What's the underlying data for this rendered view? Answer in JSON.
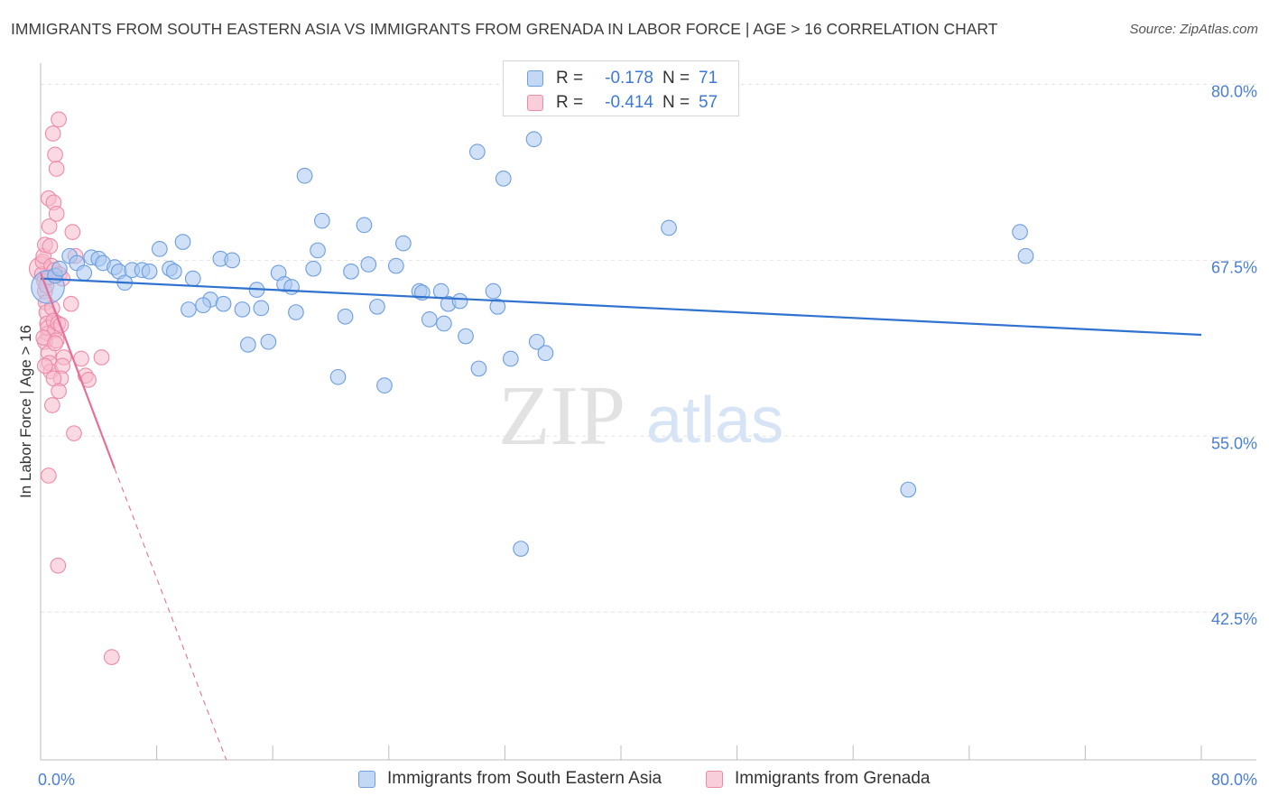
{
  "title": "IMMIGRANTS FROM SOUTH EASTERN ASIA VS IMMIGRANTS FROM GRENADA IN LABOR FORCE | AGE > 16 CORRELATION CHART",
  "source": "Source: ZipAtlas.com",
  "watermark": {
    "zip": "ZIP",
    "atlas": "atlas"
  },
  "legend": {
    "r_label": "R =",
    "n_label": "N =",
    "rows": [
      {
        "r": "-0.178",
        "n": "71"
      },
      {
        "r": "-0.414",
        "n": "57"
      }
    ]
  },
  "bottom_legend": [
    "Immigrants from South Eastern Asia",
    "Immigrants from Grenada"
  ],
  "chart_data": {
    "type": "scatter",
    "title": "IMMIGRANTS FROM SOUTH EASTERN ASIA VS IMMIGRANTS FROM GRENADA IN LABOR FORCE | AGE > 16 CORRELATION CHART",
    "xlabel": "",
    "ylabel": "In Labor Force | Age > 16",
    "xlim": [
      0,
      80
    ],
    "ylim": [
      32,
      81.5
    ],
    "x_tick_labels": [
      "0.0%",
      "80.0%"
    ],
    "y_ticks": [
      42.5,
      55.0,
      67.5,
      80.0
    ],
    "y_tick_labels": [
      "42.5%",
      "55.0%",
      "67.5%",
      "80.0%"
    ],
    "grid": true,
    "colors": {
      "blue_fill": "#aac8f0",
      "blue_stroke": "#6d9ee0",
      "blue_line": "#2f72d0",
      "pink_fill": "#f7b9cc",
      "pink_stroke": "#ec8aa8",
      "pink_line": "#e5709a"
    },
    "series": [
      {
        "name": "Immigrants from South Eastern Asia",
        "color": "#aac8f0",
        "trend": {
          "x0": 0.0,
          "y0": 66.2,
          "x1": 80.0,
          "y1": 62.2
        },
        "points": [
          {
            "x": 0.5,
            "y": 65.6,
            "s": 2.2
          },
          {
            "x": 1.0,
            "y": 66.4
          },
          {
            "x": 1.3,
            "y": 66.9
          },
          {
            "x": 2.0,
            "y": 67.8
          },
          {
            "x": 2.5,
            "y": 67.3
          },
          {
            "x": 3.0,
            "y": 66.6
          },
          {
            "x": 3.5,
            "y": 67.7
          },
          {
            "x": 4.0,
            "y": 67.6
          },
          {
            "x": 4.3,
            "y": 67.3
          },
          {
            "x": 5.1,
            "y": 67.0
          },
          {
            "x": 5.4,
            "y": 66.7
          },
          {
            "x": 5.8,
            "y": 65.9
          },
          {
            "x": 6.3,
            "y": 66.8
          },
          {
            "x": 7.0,
            "y": 66.8
          },
          {
            "x": 8.2,
            "y": 68.3
          },
          {
            "x": 8.9,
            "y": 66.9
          },
          {
            "x": 9.8,
            "y": 68.8
          },
          {
            "x": 7.5,
            "y": 66.7
          },
          {
            "x": 9.2,
            "y": 66.7
          },
          {
            "x": 10.5,
            "y": 66.2
          },
          {
            "x": 10.2,
            "y": 64.0
          },
          {
            "x": 11.7,
            "y": 64.7
          },
          {
            "x": 11.2,
            "y": 64.3
          },
          {
            "x": 12.6,
            "y": 64.4
          },
          {
            "x": 12.4,
            "y": 67.6
          },
          {
            "x": 13.2,
            "y": 67.5
          },
          {
            "x": 13.9,
            "y": 64.0
          },
          {
            "x": 14.3,
            "y": 61.5
          },
          {
            "x": 14.9,
            "y": 65.4
          },
          {
            "x": 15.2,
            "y": 64.1
          },
          {
            "x": 15.7,
            "y": 61.7
          },
          {
            "x": 16.4,
            "y": 66.6
          },
          {
            "x": 16.8,
            "y": 65.8
          },
          {
            "x": 17.3,
            "y": 65.6
          },
          {
            "x": 17.6,
            "y": 63.8
          },
          {
            "x": 18.2,
            "y": 73.5
          },
          {
            "x": 18.8,
            "y": 66.9
          },
          {
            "x": 19.1,
            "y": 68.2
          },
          {
            "x": 19.4,
            "y": 70.3
          },
          {
            "x": 20.5,
            "y": 59.2
          },
          {
            "x": 21.0,
            "y": 63.5
          },
          {
            "x": 21.4,
            "y": 66.7
          },
          {
            "x": 22.3,
            "y": 70.0
          },
          {
            "x": 22.6,
            "y": 67.2
          },
          {
            "x": 23.2,
            "y": 64.2
          },
          {
            "x": 23.7,
            "y": 58.6
          },
          {
            "x": 24.5,
            "y": 67.1
          },
          {
            "x": 25.0,
            "y": 68.7
          },
          {
            "x": 26.1,
            "y": 65.3
          },
          {
            "x": 26.3,
            "y": 65.2
          },
          {
            "x": 26.8,
            "y": 63.3
          },
          {
            "x": 27.6,
            "y": 65.3
          },
          {
            "x": 27.8,
            "y": 63.0
          },
          {
            "x": 28.1,
            "y": 64.4
          },
          {
            "x": 28.9,
            "y": 64.6
          },
          {
            "x": 30.1,
            "y": 75.2
          },
          {
            "x": 29.3,
            "y": 62.1
          },
          {
            "x": 30.2,
            "y": 59.8
          },
          {
            "x": 31.2,
            "y": 65.3
          },
          {
            "x": 31.5,
            "y": 64.2
          },
          {
            "x": 31.9,
            "y": 73.3
          },
          {
            "x": 32.4,
            "y": 60.5
          },
          {
            "x": 33.1,
            "y": 47.0
          },
          {
            "x": 34.0,
            "y": 76.1
          },
          {
            "x": 34.2,
            "y": 61.7
          },
          {
            "x": 34.8,
            "y": 60.9
          },
          {
            "x": 43.3,
            "y": 69.8
          },
          {
            "x": 59.8,
            "y": 51.2
          },
          {
            "x": 67.5,
            "y": 69.5
          },
          {
            "x": 67.9,
            "y": 67.8
          }
        ]
      },
      {
        "name": "Immigrants from Grenada",
        "color": "#f7b9cc",
        "trend": {
          "x0": 0.0,
          "y0": 66.6,
          "x1": 5.1,
          "y1": 52.7
        },
        "trend_dashed": {
          "x0": 5.1,
          "y0": 52.7,
          "x1": 12.8,
          "y1": 32.0
        },
        "points": [
          {
            "x": 0.05,
            "y": 66.9,
            "s": 1.6
          },
          {
            "x": 0.1,
            "y": 66.5
          },
          {
            "x": 0.15,
            "y": 67.4
          },
          {
            "x": 0.2,
            "y": 67.8
          },
          {
            "x": 0.25,
            "y": 66.0
          },
          {
            "x": 0.3,
            "y": 65.3
          },
          {
            "x": 0.35,
            "y": 64.5
          },
          {
            "x": 0.4,
            "y": 63.8
          },
          {
            "x": 0.45,
            "y": 63.0
          },
          {
            "x": 0.5,
            "y": 62.3
          },
          {
            "x": 0.3,
            "y": 61.7
          },
          {
            "x": 0.55,
            "y": 60.9
          },
          {
            "x": 0.6,
            "y": 60.2
          },
          {
            "x": 0.7,
            "y": 59.6
          },
          {
            "x": 0.5,
            "y": 62.7
          },
          {
            "x": 0.8,
            "y": 64.1
          },
          {
            "x": 0.9,
            "y": 63.2
          },
          {
            "x": 1.0,
            "y": 62.5
          },
          {
            "x": 1.1,
            "y": 61.8
          },
          {
            "x": 1.2,
            "y": 63.0
          },
          {
            "x": 0.4,
            "y": 65.7
          },
          {
            "x": 0.6,
            "y": 66.3
          },
          {
            "x": 0.75,
            "y": 67.1
          },
          {
            "x": 0.95,
            "y": 66.8
          },
          {
            "x": 1.3,
            "y": 66.5
          },
          {
            "x": 1.5,
            "y": 66.2
          },
          {
            "x": 0.3,
            "y": 68.6
          },
          {
            "x": 0.6,
            "y": 69.9
          },
          {
            "x": 0.55,
            "y": 71.9
          },
          {
            "x": 0.9,
            "y": 71.6
          },
          {
            "x": 1.1,
            "y": 70.8
          },
          {
            "x": 1.0,
            "y": 75.0
          },
          {
            "x": 1.1,
            "y": 74.0
          },
          {
            "x": 0.85,
            "y": 76.5
          },
          {
            "x": 1.25,
            "y": 77.5
          },
          {
            "x": 2.2,
            "y": 69.5
          },
          {
            "x": 2.4,
            "y": 67.8
          },
          {
            "x": 2.1,
            "y": 64.4
          },
          {
            "x": 1.6,
            "y": 60.6
          },
          {
            "x": 1.5,
            "y": 60.0
          },
          {
            "x": 1.4,
            "y": 59.1
          },
          {
            "x": 0.9,
            "y": 59.1
          },
          {
            "x": 1.25,
            "y": 58.2
          },
          {
            "x": 0.8,
            "y": 57.2
          },
          {
            "x": 2.3,
            "y": 55.2
          },
          {
            "x": 0.55,
            "y": 52.2
          },
          {
            "x": 1.2,
            "y": 45.8
          },
          {
            "x": 2.8,
            "y": 60.5
          },
          {
            "x": 3.1,
            "y": 59.3
          },
          {
            "x": 3.3,
            "y": 59.0
          },
          {
            "x": 4.2,
            "y": 60.6
          },
          {
            "x": 4.9,
            "y": 39.3
          },
          {
            "x": 0.2,
            "y": 62.0
          },
          {
            "x": 1.0,
            "y": 61.6
          },
          {
            "x": 1.4,
            "y": 62.9
          },
          {
            "x": 0.3,
            "y": 60.0
          },
          {
            "x": 0.65,
            "y": 68.5
          }
        ]
      }
    ]
  }
}
